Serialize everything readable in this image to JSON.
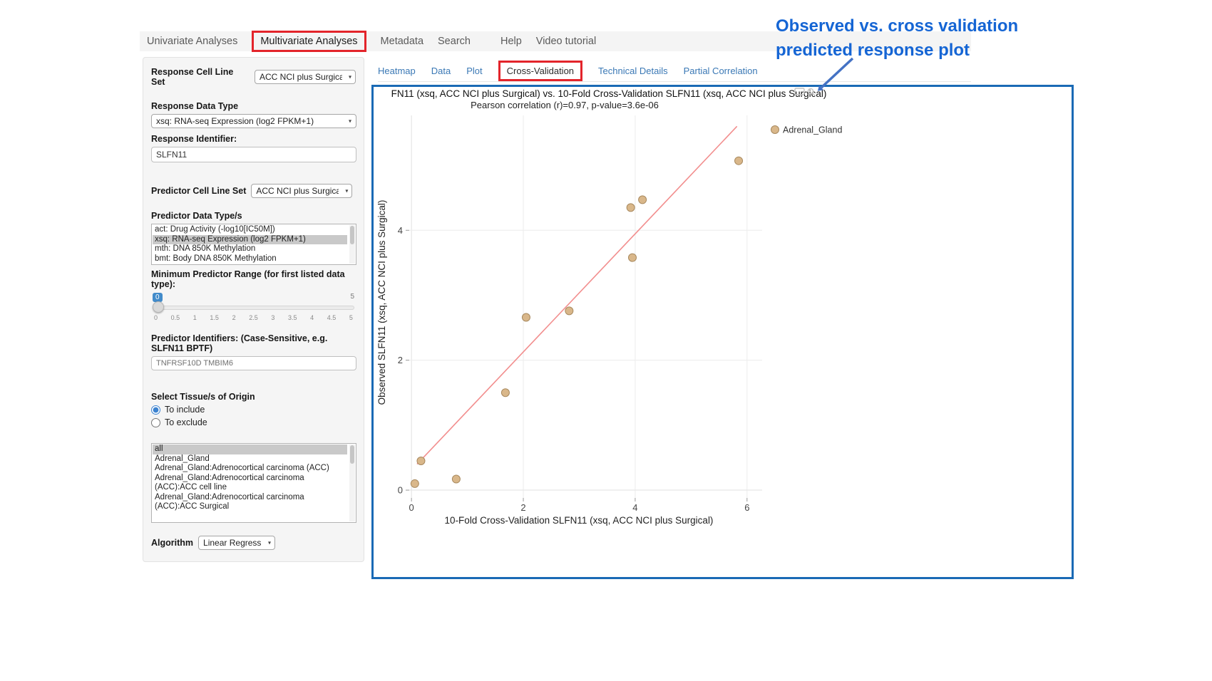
{
  "nav": {
    "items": [
      {
        "label": "Univariate Analyses"
      },
      {
        "label": "Multivariate Analyses"
      },
      {
        "label": "Metadata"
      },
      {
        "label": "Search"
      },
      {
        "label": "Help"
      },
      {
        "label": "Video tutorial"
      }
    ]
  },
  "sidebar": {
    "response_cell_line_set": {
      "label": "Response Cell Line Set",
      "value": "ACC NCI plus Surgical"
    },
    "response_data_type": {
      "label": "Response Data Type",
      "value": "xsq: RNA-seq Expression (log2 FPKM+1)"
    },
    "response_identifier": {
      "label": "Response Identifier:",
      "value": "SLFN11"
    },
    "predictor_cell_line_set": {
      "label": "Predictor Cell Line Set",
      "value": "ACC NCI plus Surgical"
    },
    "predictor_data_types": {
      "label": "Predictor Data Type/s",
      "options": [
        {
          "label": "act: Drug Activity (-log10[IC50M])",
          "selected": false
        },
        {
          "label": "xsq: RNA-seq Expression (log2 FPKM+1)",
          "selected": true
        },
        {
          "label": "mth: DNA 850K Methylation",
          "selected": false
        },
        {
          "label": "bmt: Body DNA 850K Methylation",
          "selected": false
        }
      ]
    },
    "min_predictor_range": {
      "label": "Minimum Predictor Range (for first listed data type):",
      "value": "0",
      "max_label": "5",
      "ticks": [
        "0",
        "0.5",
        "1",
        "1.5",
        "2",
        "2.5",
        "3",
        "3.5",
        "4",
        "4.5",
        "5"
      ]
    },
    "predictor_identifiers": {
      "label": "Predictor Identifiers: (Case-Sensitive, e.g. SLFN11 BPTF)",
      "value": "TNFRSF10D TMBIM6"
    },
    "tissue_origin": {
      "label": "Select Tissue/s of Origin",
      "options": [
        {
          "label": "To include",
          "selected": true
        },
        {
          "label": "To exclude",
          "selected": false
        }
      ]
    },
    "tissue_list": {
      "options": [
        {
          "label": "all",
          "selected": true
        },
        {
          "label": "Adrenal_Gland",
          "selected": false
        },
        {
          "label": "Adrenal_Gland:Adrenocortical carcinoma (ACC)",
          "selected": false
        },
        {
          "label": "Adrenal_Gland:Adrenocortical carcinoma (ACC):ACC cell line",
          "selected": false
        },
        {
          "label": "Adrenal_Gland:Adrenocortical carcinoma (ACC):ACC Surgical",
          "selected": false
        }
      ]
    },
    "algorithm": {
      "label": "Algorithm",
      "value": "Linear Regression"
    }
  },
  "tabs": {
    "items": [
      {
        "label": "Heatmap",
        "active": false
      },
      {
        "label": "Data",
        "active": false
      },
      {
        "label": "Plot",
        "active": false
      },
      {
        "label": "Cross-Validation",
        "active": true
      },
      {
        "label": "Technical Details",
        "active": false
      },
      {
        "label": "Partial Correlation",
        "active": false
      }
    ]
  },
  "annotation": {
    "line1": "Observed vs. cross validation",
    "line2": "predicted response plot"
  },
  "colors": {
    "highlight_box_red": "#e3242b",
    "panel_border_blue": "#1a6ab5",
    "annotation_blue": "#1565d4",
    "arrow_blue": "#4472c4",
    "marker_tan": "#d9b78a",
    "fit_line_red": "#f28e8e"
  },
  "chart_data": {
    "type": "scatter",
    "title": "FN11 (xsq, ACC NCI plus Surgical) vs. 10-Fold Cross-Validation SLFN11 (xsq, ACC NCI plus Surgical)",
    "subtitle": "Pearson correlation (r)=0.97, p-value=3.6e-06",
    "xlabel": "10-Fold Cross-Validation SLFN11 (xsq, ACC NCI plus Surgical)",
    "ylabel": "Observed SLFN11 (xsq, ACC NCI plus Surgical)",
    "xlim": [
      -0.04,
      6.27
    ],
    "ylim": [
      -0.12,
      5.9
    ],
    "xticks": [
      0,
      2,
      4,
      6
    ],
    "yticks": [
      0,
      2,
      4
    ],
    "grid": true,
    "legend": {
      "position": "top-right",
      "entries": [
        {
          "label": "Adrenal_Gland",
          "marker_fill": "#d9b78a",
          "marker_stroke": "#a8895e"
        }
      ]
    },
    "marker": {
      "fill": "#d9b78a",
      "stroke": "#a8895e"
    },
    "series": [
      {
        "name": "Adrenal_Gland",
        "points": [
          [
            0.06,
            0.1
          ],
          [
            0.17,
            0.45
          ],
          [
            0.8,
            0.17
          ],
          [
            1.68,
            1.5
          ],
          [
            2.05,
            2.66
          ],
          [
            2.82,
            2.76
          ],
          [
            3.95,
            3.58
          ],
          [
            3.92,
            4.35
          ],
          [
            4.13,
            4.47
          ],
          [
            5.85,
            5.07
          ]
        ]
      }
    ],
    "fit_line": {
      "x1": 0.1,
      "y1": 0.4,
      "x2": 5.82,
      "y2": 5.6,
      "color": "#f28e8e"
    }
  }
}
